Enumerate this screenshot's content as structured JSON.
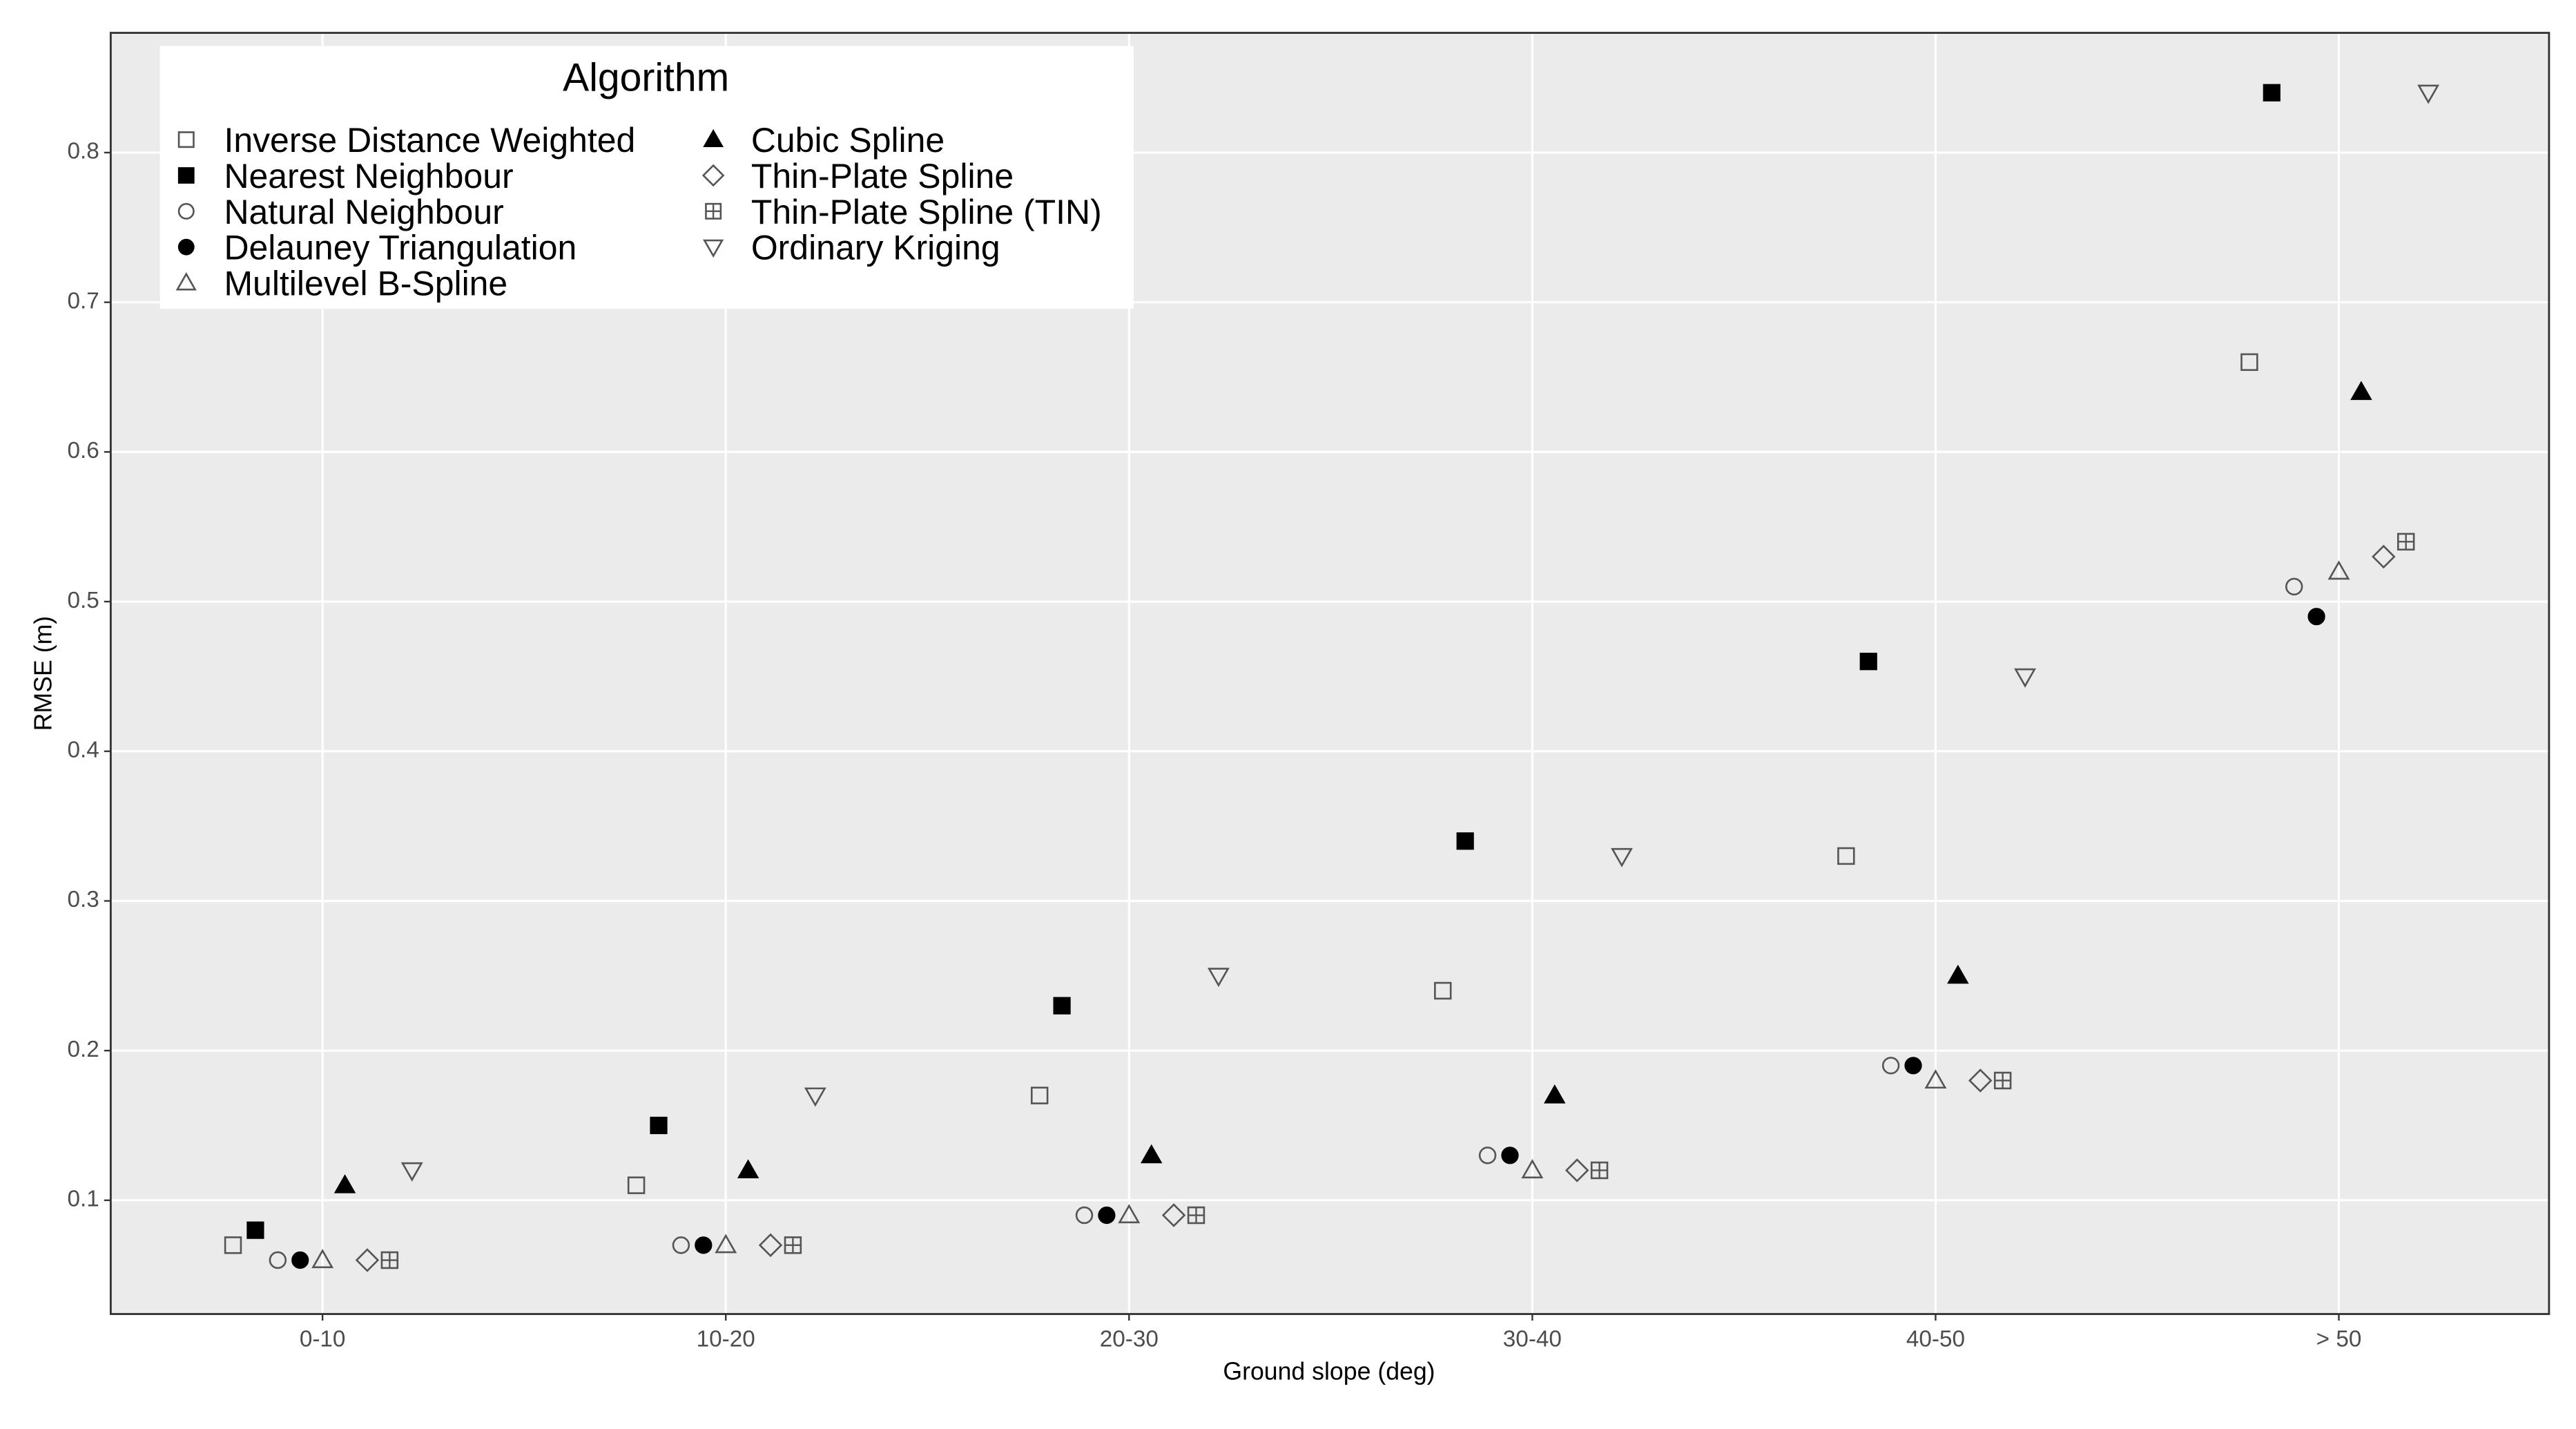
{
  "chart_data": {
    "type": "scatter",
    "x_label": "Ground slope (deg)",
    "y_label": "RMSE (m)",
    "legend_title": "Algorithm",
    "legend_position": "top-left",
    "grid": true,
    "categories": [
      "0-10",
      "10-20",
      "20-30",
      "30-40",
      "40-50",
      "> 50"
    ],
    "ylim": [
      0.024,
      0.88
    ],
    "yticks": [
      0.1,
      0.2,
      0.3,
      0.4,
      0.5,
      0.6,
      0.7,
      0.8
    ],
    "series": [
      {
        "name": "Inverse Distance Weighted",
        "marker": "open-square",
        "color": "#555555",
        "values": [
          0.07,
          0.11,
          0.17,
          0.24,
          0.33,
          0.66
        ]
      },
      {
        "name": "Nearest Neighbour",
        "marker": "filled-square",
        "color": "#000000",
        "values": [
          0.08,
          0.15,
          0.23,
          0.34,
          0.46,
          0.84
        ]
      },
      {
        "name": "Natural Neighbour",
        "marker": "open-circle",
        "color": "#555555",
        "values": [
          0.06,
          0.07,
          0.09,
          0.13,
          0.19,
          0.51
        ]
      },
      {
        "name": "Delauney Triangulation",
        "marker": "filled-circle",
        "color": "#000000",
        "values": [
          0.06,
          0.07,
          0.09,
          0.13,
          0.19,
          0.49
        ]
      },
      {
        "name": "Multilevel B-Spline",
        "marker": "open-triangle",
        "color": "#555555",
        "values": [
          0.06,
          0.07,
          0.09,
          0.12,
          0.18,
          0.52
        ]
      },
      {
        "name": "Cubic Spline",
        "marker": "filled-triangle",
        "color": "#000000",
        "values": [
          0.11,
          0.12,
          0.13,
          0.17,
          0.25,
          0.64
        ]
      },
      {
        "name": "Thin-Plate Spline",
        "marker": "open-diamond",
        "color": "#555555",
        "values": [
          0.06,
          0.07,
          0.09,
          0.12,
          0.18,
          0.53
        ]
      },
      {
        "name": "Thin-Plate Spline (TIN)",
        "marker": "square-plus",
        "color": "#555555",
        "values": [
          0.06,
          0.07,
          0.09,
          0.12,
          0.18,
          0.54
        ]
      },
      {
        "name": "Ordinary Kriging",
        "marker": "open-triangle-down",
        "color": "#555555",
        "values": [
          0.12,
          0.17,
          0.25,
          0.33,
          0.45,
          0.84
        ]
      }
    ]
  }
}
